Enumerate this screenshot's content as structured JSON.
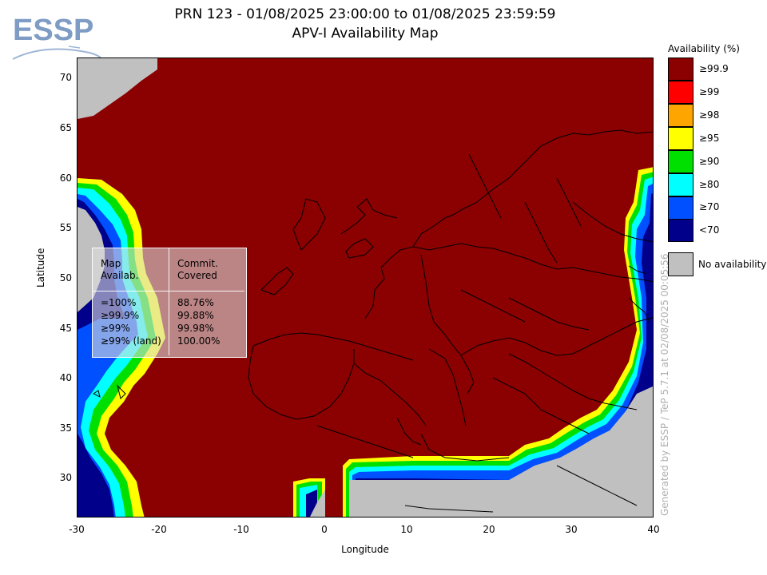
{
  "header": {
    "title_line1": "PRN 123 - 01/08/2025 23:00:00 to 01/08/2025 23:59:59",
    "title_line2": "APV-I Availability Map",
    "logo_text": "ESSP"
  },
  "map": {
    "xlabel": "Longitude",
    "ylabel": "Latitude",
    "x_ticks": [
      "-30",
      "-20",
      "-10",
      "0",
      "10",
      "20",
      "30",
      "40"
    ],
    "y_ticks": [
      "70",
      "65",
      "60",
      "55",
      "50",
      "45",
      "40",
      "35",
      "30"
    ],
    "lon_range": [
      -30,
      40
    ],
    "lat_range": [
      26,
      72.5
    ]
  },
  "legend": {
    "title": "Availability (%)",
    "items": [
      {
        "label": "≥99.9",
        "color": "#8b0000"
      },
      {
        "label": "≥99",
        "color": "#ff0000"
      },
      {
        "label": "≥98",
        "color": "#ffa500"
      },
      {
        "label": "≥95",
        "color": "#ffff00"
      },
      {
        "label": "≥90",
        "color": "#00e000"
      },
      {
        "label": "≥80",
        "color": "#00ffff"
      },
      {
        "label": "≥70",
        "color": "#0050ff"
      },
      {
        "label": "<70",
        "color": "#00008b"
      }
    ],
    "no_availability_label": "No availability",
    "no_availability_color": "#c0c0c0"
  },
  "stats": {
    "header_col1_line1": "Map",
    "header_col1_line2": "Availab.",
    "header_col2_line1": "Commit.",
    "header_col2_line2": "Covered",
    "rows": [
      {
        "label": "=100%",
        "value": "88.76%"
      },
      {
        "label": "≥99.9%",
        "value": "99.88%"
      },
      {
        "label": "≥99%",
        "value": "99.98%"
      },
      {
        "label": "≥99% (land)",
        "value": "100.00%"
      }
    ]
  },
  "side_note": "Generated by ESSP / TeP 5.7.1 at 02/08/2025 00:05:56"
}
